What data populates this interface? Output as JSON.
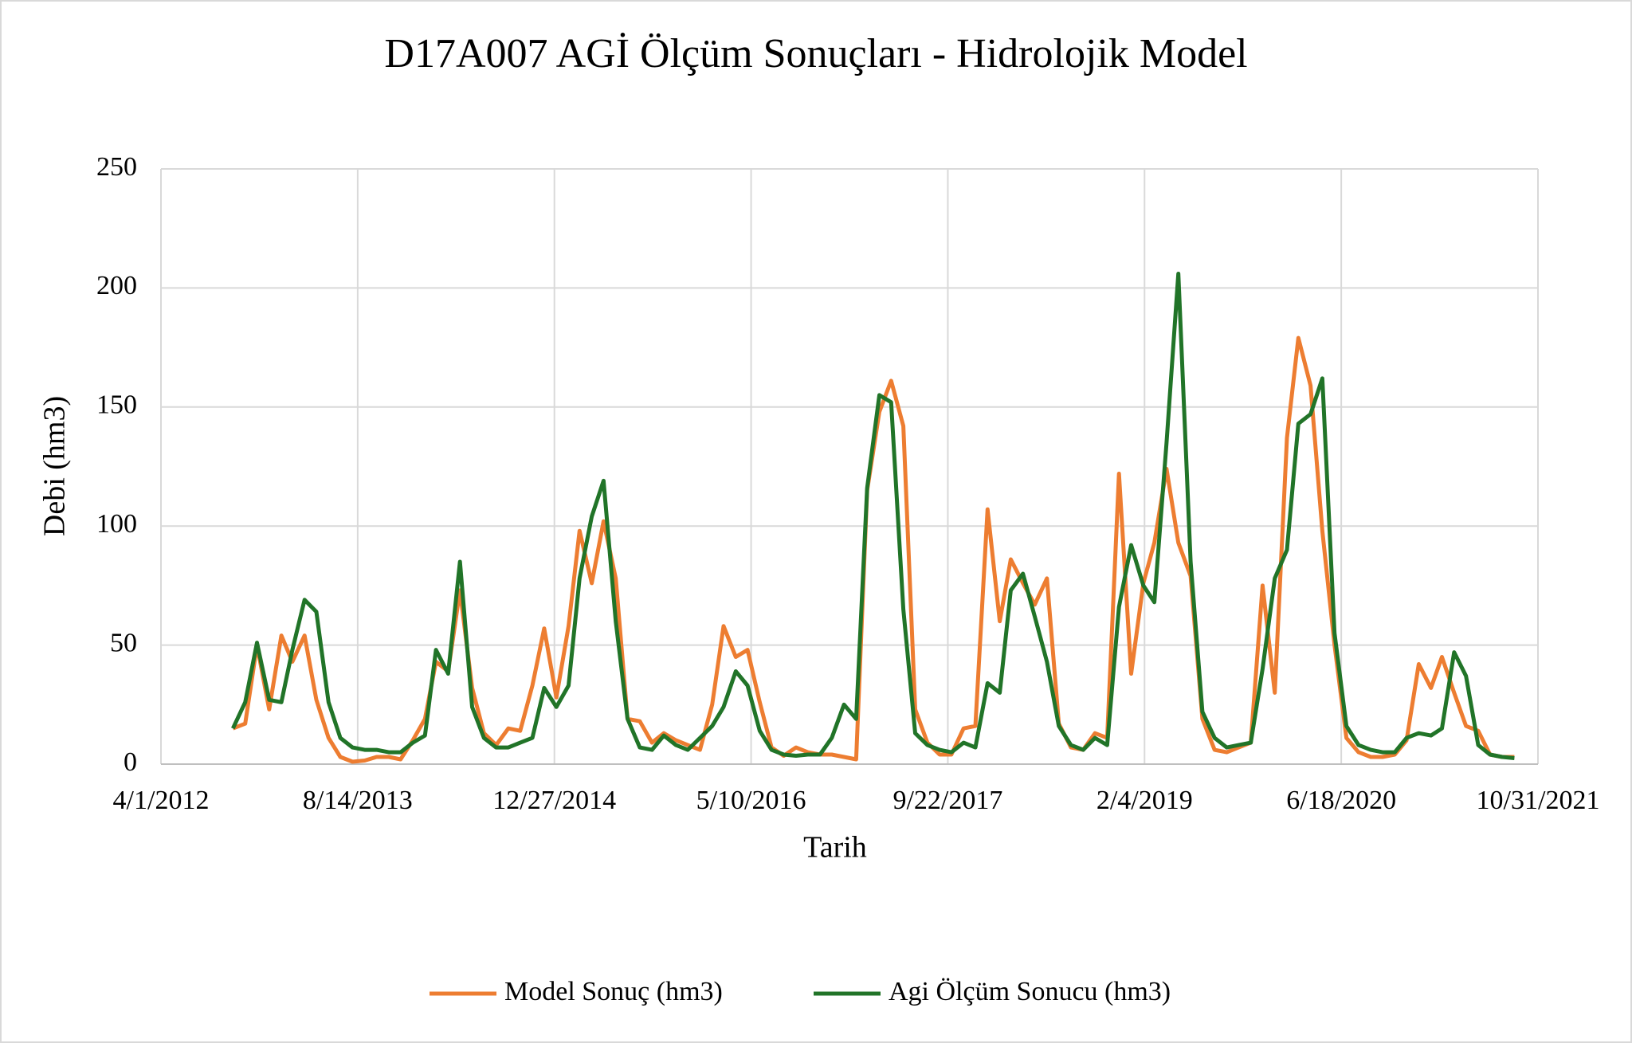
{
  "chart_data": {
    "type": "line",
    "title": "D17A007 AGİ Ölçüm Sonuçları - Hidrolojik Model",
    "x_label": "Tarih",
    "y_label": "Debi (hm3)",
    "x": [
      "10/1/2012",
      "11/1/2012",
      "12/1/2012",
      "1/1/2013",
      "2/1/2013",
      "3/1/2013",
      "4/1/2013",
      "5/1/2013",
      "6/1/2013",
      "7/1/2013",
      "8/1/2013",
      "9/1/2013",
      "10/1/2013",
      "11/1/2013",
      "12/1/2013",
      "1/1/2014",
      "2/1/2014",
      "3/1/2014",
      "4/1/2014",
      "5/1/2014",
      "6/1/2014",
      "7/1/2014",
      "8/1/2014",
      "9/1/2014",
      "10/1/2014",
      "11/1/2014",
      "12/1/2014",
      "1/1/2015",
      "2/1/2015",
      "3/1/2015",
      "4/1/2015",
      "5/1/2015",
      "6/1/2015",
      "7/1/2015",
      "8/1/2015",
      "9/1/2015",
      "10/1/2015",
      "11/1/2015",
      "12/1/2015",
      "1/1/2016",
      "2/1/2016",
      "3/1/2016",
      "4/1/2016",
      "5/1/2016",
      "6/1/2016",
      "7/1/2016",
      "8/1/2016",
      "9/1/2016",
      "10/1/2016",
      "11/1/2016",
      "12/1/2016",
      "1/1/2017",
      "2/1/2017",
      "3/1/2017",
      "4/1/2017",
      "5/1/2017",
      "6/1/2017",
      "7/1/2017",
      "8/1/2017",
      "9/1/2017",
      "10/1/2017",
      "11/1/2017",
      "12/1/2017",
      "1/1/2018",
      "2/1/2018",
      "3/1/2018",
      "4/1/2018",
      "5/1/2018",
      "6/1/2018",
      "7/1/2018",
      "8/1/2018",
      "9/1/2018",
      "10/1/2018",
      "11/1/2018",
      "12/1/2018",
      "1/1/2019",
      "2/1/2019",
      "3/1/2019",
      "4/1/2019",
      "5/1/2019",
      "6/1/2019",
      "7/1/2019",
      "8/1/2019",
      "9/1/2019",
      "10/1/2019",
      "11/1/2019",
      "12/1/2019",
      "1/1/2020",
      "2/1/2020",
      "3/1/2020",
      "4/1/2020",
      "5/1/2020",
      "6/1/2020",
      "7/1/2020",
      "8/1/2020",
      "9/1/2020",
      "10/1/2020",
      "11/1/2020",
      "12/1/2020",
      "1/1/2021",
      "2/1/2021",
      "3/1/2021",
      "4/1/2021",
      "5/1/2021",
      "6/1/2021",
      "7/1/2021",
      "8/1/2021",
      "9/1/2021"
    ],
    "series": [
      {
        "name": "Model Sonuç (hm3)",
        "color": "#ed7d31",
        "values": [
          15,
          17,
          50,
          23,
          54,
          43,
          54,
          27,
          11,
          3,
          1,
          1.5,
          3,
          3,
          2,
          10,
          19,
          43,
          39,
          73,
          32,
          13,
          8,
          15,
          14,
          33,
          57,
          28,
          58,
          98,
          76,
          102,
          78,
          19,
          18,
          9,
          13,
          10,
          8,
          6,
          25,
          58,
          45,
          48,
          26,
          7,
          3.5,
          7,
          5,
          4,
          4,
          3,
          2,
          115,
          148,
          161,
          142,
          23,
          9,
          4,
          4,
          15,
          16,
          107,
          60,
          86,
          76,
          67,
          78,
          17,
          7,
          6,
          13,
          11,
          122,
          38,
          76,
          93,
          124,
          93,
          79,
          19,
          6,
          5,
          7,
          9,
          75,
          30,
          137,
          179,
          159,
          98,
          50,
          11,
          5,
          3,
          3,
          4,
          10,
          42,
          32,
          45,
          30,
          16,
          14,
          4,
          3,
          3
        ]
      },
      {
        "name": "Agi Ölçüm Sonucu (hm3)",
        "color": "#217428",
        "values": [
          15,
          26,
          51,
          27,
          26,
          48,
          69,
          64,
          26,
          11,
          7,
          6,
          6,
          5,
          5,
          9,
          12,
          48,
          38,
          85,
          24,
          11,
          7,
          7,
          9,
          11,
          32,
          24,
          33,
          78,
          104,
          119,
          60,
          19,
          7,
          6,
          12,
          8,
          6,
          11,
          16,
          24,
          39,
          33,
          14,
          6,
          4,
          3.5,
          4,
          4,
          11,
          25,
          19,
          116,
          155,
          152,
          65,
          13,
          8,
          6,
          5,
          9,
          7,
          34,
          30,
          73,
          80,
          62,
          43,
          16,
          8,
          6,
          11,
          8,
          66,
          92,
          75,
          68,
          135,
          206,
          85,
          22,
          11,
          7,
          8,
          9,
          40,
          78,
          90,
          143,
          147,
          162,
          55,
          16,
          8,
          6,
          5,
          5,
          11,
          13,
          12,
          15,
          47,
          37,
          8,
          4,
          3,
          2.5
        ]
      }
    ],
    "xlim": [
      "4/1/2012",
      "10/31/2021"
    ],
    "xticks": [
      "4/1/2012",
      "8/14/2013",
      "12/27/2014",
      "5/10/2016",
      "9/22/2017",
      "2/4/2019",
      "6/18/2020",
      "10/31/2021"
    ],
    "ylim": [
      0,
      250
    ],
    "yticks": [
      0,
      50,
      100,
      150,
      200,
      250
    ],
    "grid": true,
    "legend": "bottom"
  }
}
